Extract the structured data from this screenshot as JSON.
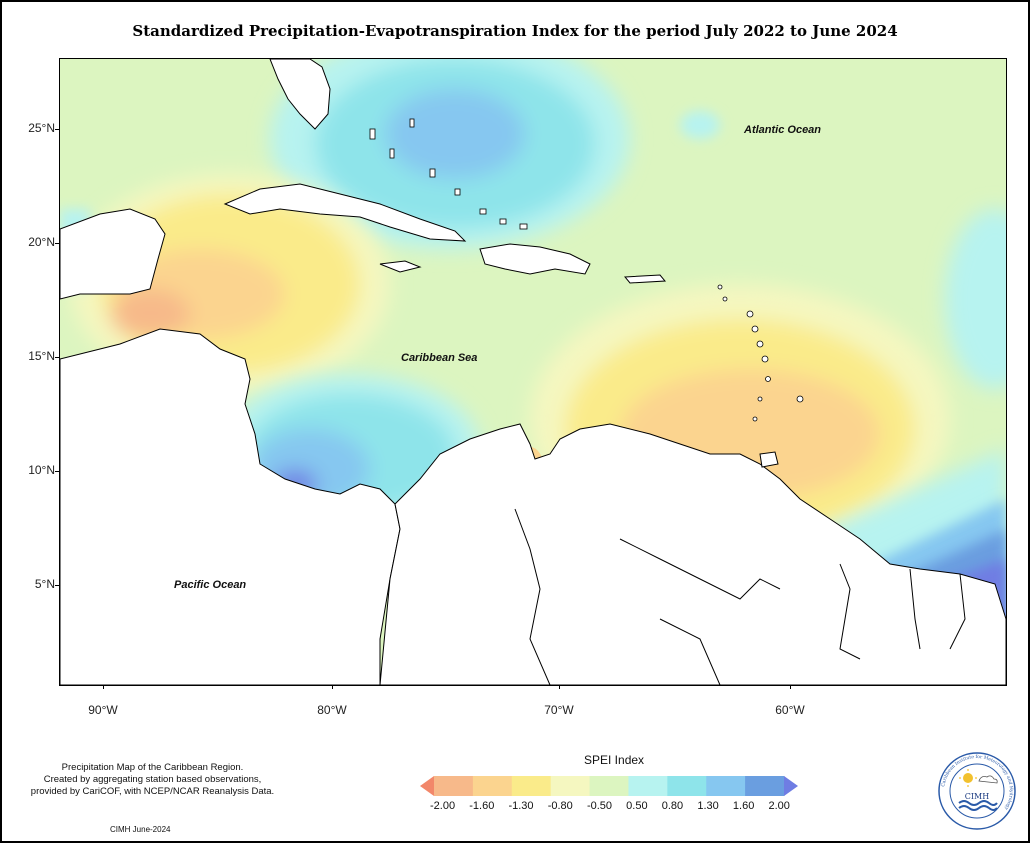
{
  "title": "Standardized Precipitation-Evapotranspiration Index for the period July 2022 to June 2024",
  "map": {
    "ocean_labels": [
      "Atlantic Ocean",
      "Caribbean Sea",
      "Pacific Ocean"
    ],
    "lat_ticks": [
      "25°N",
      "20°N",
      "15°N",
      "10°N",
      "5°N"
    ],
    "lon_ticks": [
      "90°W",
      "80°W",
      "70°W",
      "60°W"
    ]
  },
  "legend": {
    "title": "SPEI Index",
    "labels": [
      "-2.00",
      "-1.60",
      "-1.30",
      "-0.80",
      "-0.50",
      "0.50",
      "0.80",
      "1.30",
      "1.60",
      "2.00"
    ],
    "colors": [
      "#f2876a",
      "#f7b98a",
      "#fbd48f",
      "#faeb8a",
      "#f5f7c0",
      "#dcf5c0",
      "#b7f3f0",
      "#8ee4ea",
      "#86c7f0",
      "#6a9ee0",
      "#6f7de3"
    ]
  },
  "footnote": {
    "lines": [
      "Precipitation Map of the Caribbean Region.",
      "Created by aggregating station based observations,",
      "provided by CariCOF, with NCEP/NCAR Reanalysis Data."
    ],
    "credit": "CIMH June-2024"
  },
  "logo": {
    "text": "CIMH",
    "ring_text": "Caribbean Institute for Meteorology and Hydrology"
  }
}
